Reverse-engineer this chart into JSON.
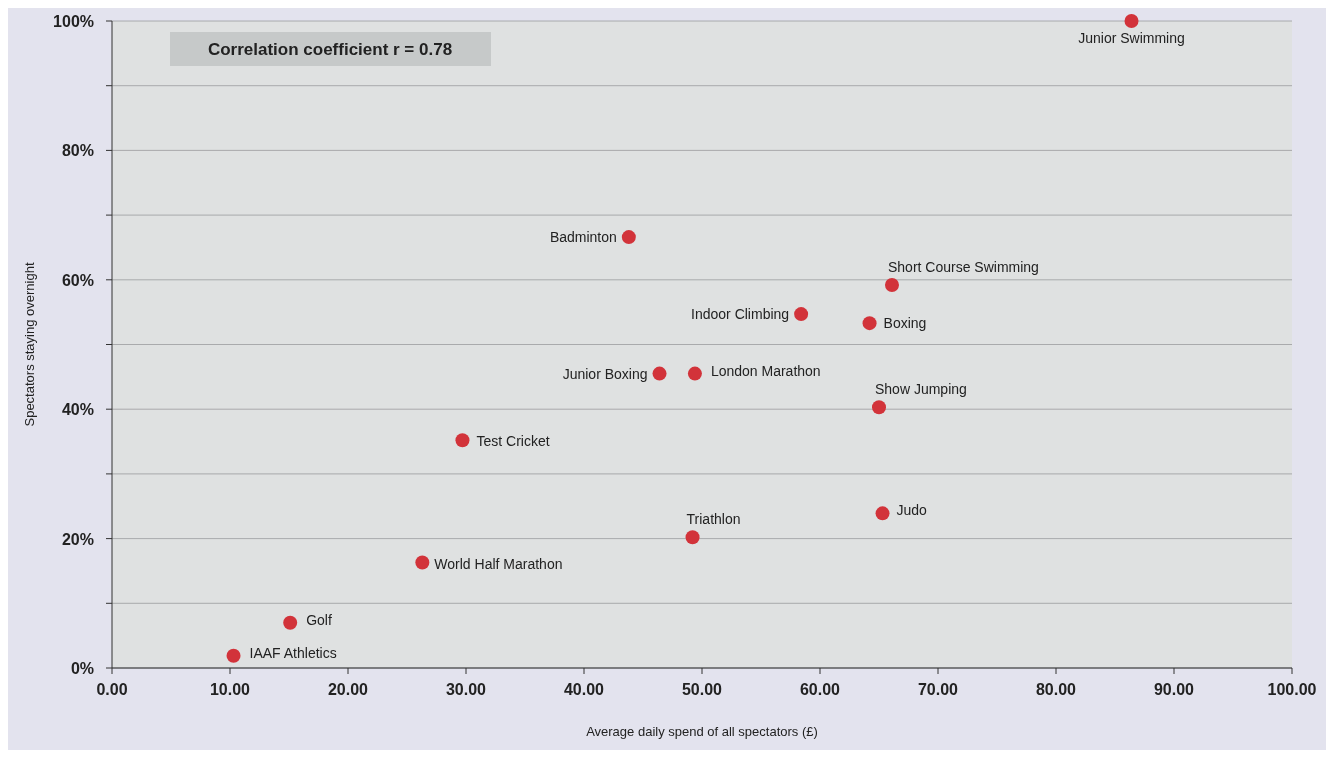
{
  "chart_data": {
    "type": "scatter",
    "xlabel": "Average daily spend of all spectators (£)",
    "ylabel": "Spectators staying overnight",
    "x": [
      86.4,
      43.8,
      66.1,
      58.4,
      64.2,
      46.4,
      49.4,
      65.0,
      29.7,
      49.2,
      65.3,
      26.3,
      15.1,
      10.3
    ],
    "series": [
      {
        "color": "#d2333a",
        "values": [
          100,
          66.6,
          59.2,
          54.7,
          53.3,
          45.5,
          45.5,
          40.3,
          35.2,
          20.2,
          23.9,
          16.3,
          7.0,
          1.9
        ]
      }
    ],
    "marker": "circle",
    "grid": "y",
    "xlim": [
      0,
      100
    ],
    "xticks": [
      {
        "value": 0,
        "label": "0.00"
      },
      {
        "value": 10,
        "label": "10.00"
      },
      {
        "value": 20,
        "label": "20.00"
      },
      {
        "value": 30,
        "label": "30.00"
      },
      {
        "value": 40,
        "label": "40.00"
      },
      {
        "value": 50,
        "label": "50.00"
      },
      {
        "value": 60,
        "label": "60.00"
      },
      {
        "value": 70,
        "label": "70.00"
      },
      {
        "value": 80,
        "label": "80.00"
      },
      {
        "value": 90,
        "label": "90.00"
      },
      {
        "value": 100,
        "label": "100.00"
      }
    ],
    "ylim": [
      0,
      100
    ],
    "yticks": [
      {
        "value": 0,
        "label": "0%"
      },
      {
        "value": 10,
        "label": null
      },
      {
        "value": 20,
        "label": "20%"
      },
      {
        "value": 30,
        "label": null
      },
      {
        "value": 40,
        "label": "40%"
      },
      {
        "value": 50,
        "label": null
      },
      {
        "value": 60,
        "label": "60%"
      },
      {
        "value": 70,
        "label": null
      },
      {
        "value": 80,
        "label": "80%"
      },
      {
        "value": 90,
        "label": null
      },
      {
        "value": 100,
        "label": "100%"
      }
    ],
    "annotations": [
      "Correlation coefficient r = 0.78",
      {
        "text": "Junior Swimming",
        "x": 86.4,
        "y": 100
      },
      {
        "text": "Badminton",
        "x": 43.8,
        "y": 66.6
      },
      {
        "text": "Short Course Swimming",
        "x": 66.1,
        "y": 59.2
      },
      {
        "text": "Indoor Climbing",
        "x": 58.4,
        "y": 54.7
      },
      {
        "text": "Boxing",
        "x": 64.2,
        "y": 53.3
      },
      {
        "text": "Junior Boxing",
        "x": 46.4,
        "y": 45.5
      },
      {
        "text": "London Marathon",
        "x": 49.4,
        "y": 45.5
      },
      {
        "text": "Show Jumping",
        "x": 65.0,
        "y": 40.3
      },
      {
        "text": "Test Cricket",
        "x": 29.7,
        "y": 35.2
      },
      {
        "text": "Triathlon",
        "x": 49.2,
        "y": 20.2
      },
      {
        "text": "Judo",
        "x": 65.3,
        "y": 23.9
      },
      {
        "text": "World Half Marathon",
        "x": 26.3,
        "y": 16.3
      },
      {
        "text": "Golf",
        "x": 15.1,
        "y": 7.0
      },
      {
        "text": "IAAF Athletics",
        "x": 10.3,
        "y": 1.9
      }
    ]
  }
}
